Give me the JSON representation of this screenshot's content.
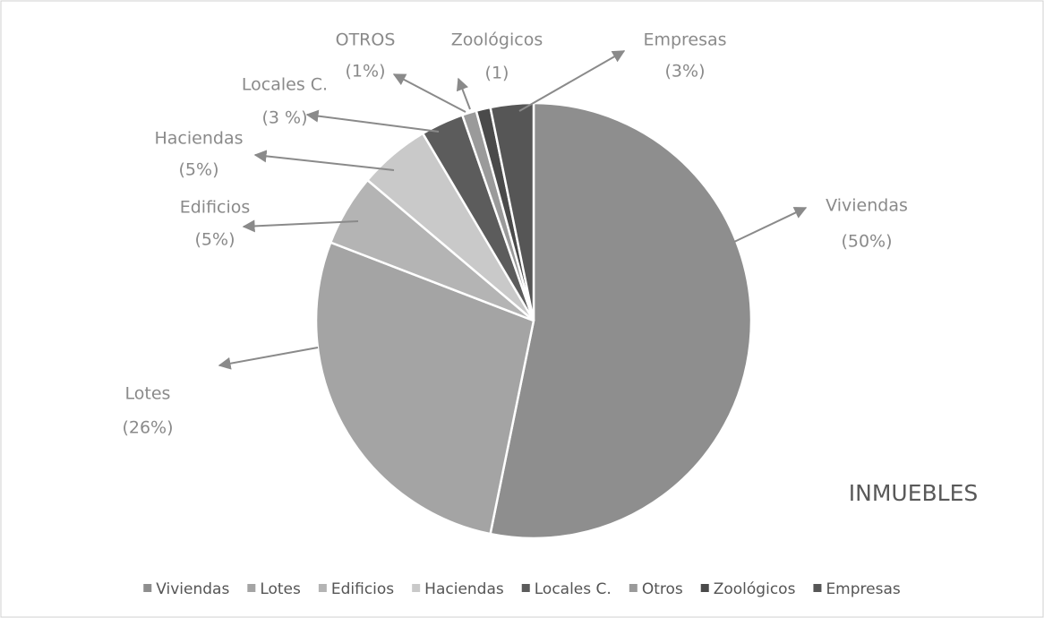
{
  "chart_data": {
    "type": "pie",
    "title": "INMUEBLES",
    "categories": [
      "Viviendas",
      "Lotes",
      "Edificios",
      "Haciendas",
      "Locales C.",
      "Otros",
      "Zoológicos",
      "Empresas"
    ],
    "slice_labels": [
      "Viviendas",
      "Lotes",
      "Edificios",
      "Haciendas",
      "Locales C.",
      "OTROS",
      "Zoológicos",
      "Empresas"
    ],
    "values": [
      50,
      26,
      5,
      5,
      3,
      1,
      1,
      3
    ],
    "value_labels": [
      "(50%)",
      "(26%)",
      "(5%)",
      "(5%)",
      "(3 %)",
      "(1%)",
      "(1)",
      "(3%)"
    ],
    "colors": [
      "#8e8e8e",
      "#a4a4a4",
      "#b4b4b4",
      "#c9c9c9",
      "#5c5c5c",
      "#9a9a9a",
      "#4a4a4a",
      "#565656"
    ],
    "legend": "bottom"
  }
}
